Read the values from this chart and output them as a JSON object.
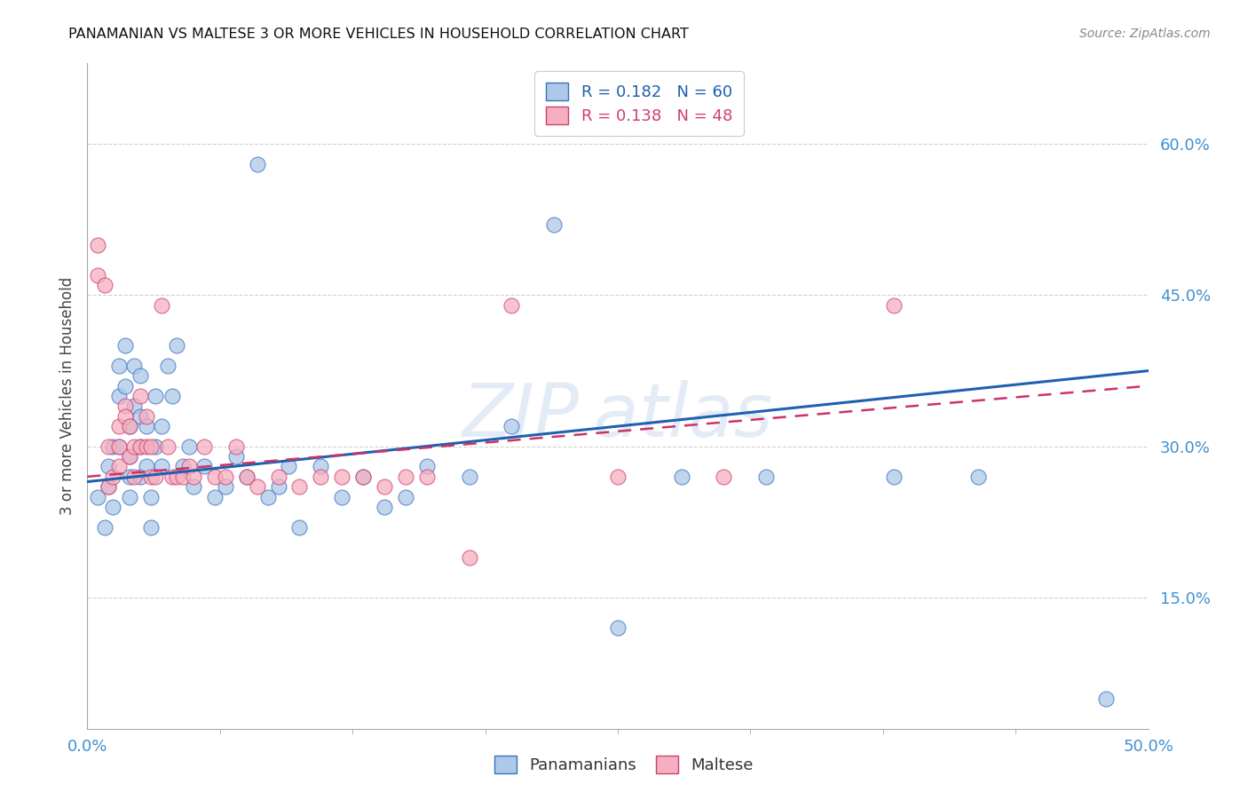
{
  "title": "PANAMANIAN VS MALTESE 3 OR MORE VEHICLES IN HOUSEHOLD CORRELATION CHART",
  "source": "Source: ZipAtlas.com",
  "ylabel": "3 or more Vehicles in Household",
  "ytick_values": [
    0.15,
    0.3,
    0.45,
    0.6
  ],
  "xlim": [
    0.0,
    0.5
  ],
  "ylim": [
    0.02,
    0.68
  ],
  "pan_color": "#adc8e8",
  "pan_edge_color": "#3a72c0",
  "pan_line_color": "#2060b0",
  "mal_color": "#f5afc0",
  "mal_edge_color": "#d04070",
  "mal_line_color": "#cc3366",
  "background_color": "#ffffff",
  "grid_color": "#cccccc",
  "tick_color": "#4090d0",
  "title_color": "#111111",
  "source_color": "#888888",
  "pan_scatter_x": [
    0.005,
    0.008,
    0.01,
    0.01,
    0.012,
    0.012,
    0.015,
    0.015,
    0.015,
    0.018,
    0.018,
    0.02,
    0.02,
    0.02,
    0.02,
    0.022,
    0.022,
    0.025,
    0.025,
    0.025,
    0.025,
    0.028,
    0.028,
    0.03,
    0.03,
    0.032,
    0.032,
    0.035,
    0.035,
    0.038,
    0.04,
    0.042,
    0.045,
    0.048,
    0.05,
    0.055,
    0.06,
    0.065,
    0.07,
    0.075,
    0.08,
    0.085,
    0.09,
    0.095,
    0.1,
    0.11,
    0.12,
    0.13,
    0.14,
    0.15,
    0.16,
    0.18,
    0.2,
    0.22,
    0.25,
    0.28,
    0.32,
    0.38,
    0.42,
    0.48
  ],
  "pan_scatter_y": [
    0.25,
    0.22,
    0.26,
    0.28,
    0.3,
    0.24,
    0.3,
    0.35,
    0.38,
    0.36,
    0.4,
    0.27,
    0.29,
    0.32,
    0.25,
    0.38,
    0.34,
    0.27,
    0.3,
    0.33,
    0.37,
    0.28,
    0.32,
    0.25,
    0.22,
    0.3,
    0.35,
    0.28,
    0.32,
    0.38,
    0.35,
    0.4,
    0.28,
    0.3,
    0.26,
    0.28,
    0.25,
    0.26,
    0.29,
    0.27,
    0.58,
    0.25,
    0.26,
    0.28,
    0.22,
    0.28,
    0.25,
    0.27,
    0.24,
    0.25,
    0.28,
    0.27,
    0.32,
    0.52,
    0.12,
    0.27,
    0.27,
    0.27,
    0.27,
    0.05
  ],
  "mal_scatter_x": [
    0.005,
    0.005,
    0.008,
    0.01,
    0.01,
    0.012,
    0.015,
    0.015,
    0.015,
    0.018,
    0.018,
    0.02,
    0.02,
    0.022,
    0.022,
    0.025,
    0.025,
    0.028,
    0.028,
    0.03,
    0.03,
    0.032,
    0.035,
    0.038,
    0.04,
    0.042,
    0.045,
    0.048,
    0.05,
    0.055,
    0.06,
    0.065,
    0.07,
    0.075,
    0.08,
    0.09,
    0.1,
    0.11,
    0.12,
    0.13,
    0.14,
    0.15,
    0.16,
    0.18,
    0.2,
    0.25,
    0.3,
    0.38
  ],
  "mal_scatter_y": [
    0.47,
    0.5,
    0.46,
    0.26,
    0.3,
    0.27,
    0.28,
    0.32,
    0.3,
    0.34,
    0.33,
    0.29,
    0.32,
    0.27,
    0.3,
    0.35,
    0.3,
    0.33,
    0.3,
    0.27,
    0.3,
    0.27,
    0.44,
    0.3,
    0.27,
    0.27,
    0.27,
    0.28,
    0.27,
    0.3,
    0.27,
    0.27,
    0.3,
    0.27,
    0.26,
    0.27,
    0.26,
    0.27,
    0.27,
    0.27,
    0.26,
    0.27,
    0.27,
    0.19,
    0.44,
    0.27,
    0.27,
    0.44
  ],
  "pan_line_x0": 0.0,
  "pan_line_y0": 0.265,
  "pan_line_x1": 0.5,
  "pan_line_y1": 0.375,
  "mal_line_x0": 0.0,
  "mal_line_y0": 0.27,
  "mal_line_x1": 0.5,
  "mal_line_y1": 0.36
}
